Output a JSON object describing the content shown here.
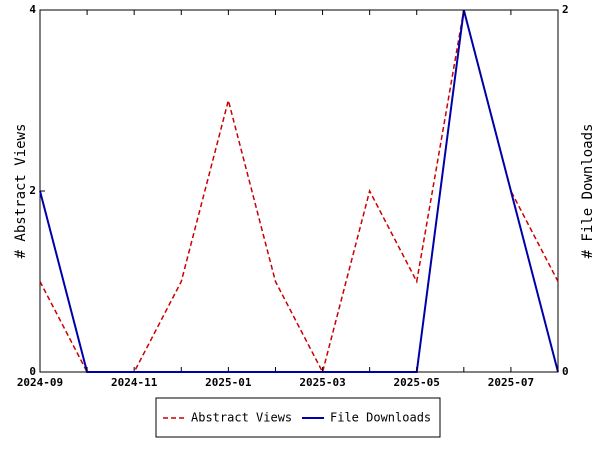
{
  "chart_data": {
    "type": "line",
    "x": [
      "2024-09",
      "2024-10",
      "2024-11",
      "2024-12",
      "2025-01",
      "2025-02",
      "2025-03",
      "2025-04",
      "2025-05",
      "2025-06",
      "2025-07",
      "2025-08"
    ],
    "x_tick_labels": [
      "2024-09",
      "2024-11",
      "2025-01",
      "2025-03",
      "2025-05",
      "2025-07"
    ],
    "series": [
      {
        "name": "Abstract Views",
        "axis": "left",
        "style": "dashed",
        "color": "#cc0000",
        "values": [
          1,
          0,
          0,
          1,
          3,
          1,
          0,
          2,
          1,
          4,
          2,
          1
        ]
      },
      {
        "name": "File Downloads",
        "axis": "right",
        "style": "solid",
        "color": "#0000aa",
        "values": [
          1,
          0,
          0,
          0,
          0,
          0,
          0,
          0,
          0,
          2,
          1,
          0
        ]
      }
    ],
    "ylabel_left": "# Abstract Views",
    "ylabel_right": "# File Downloads",
    "ylim_left": [
      0,
      4
    ],
    "ylim_right": [
      0,
      2
    ],
    "y_ticks_left": [
      "0",
      "2",
      "4"
    ],
    "y_ticks_right": [
      "0",
      "2"
    ],
    "grid": false,
    "legend_position": "bottom"
  }
}
